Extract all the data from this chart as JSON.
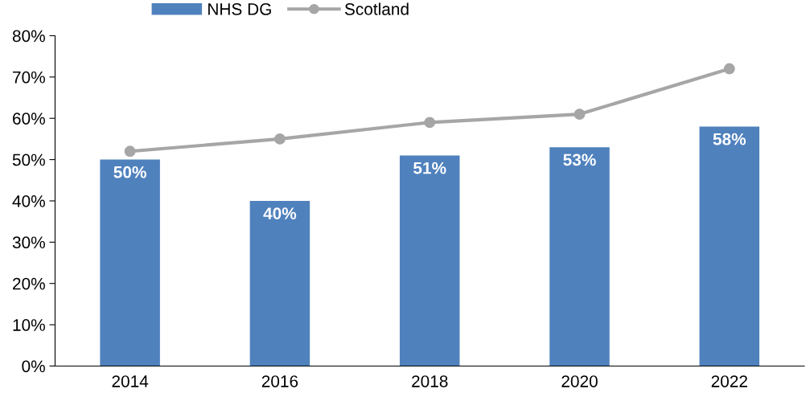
{
  "chart_data": {
    "type": "bar",
    "categories": [
      "2014",
      "2016",
      "2018",
      "2020",
      "2022"
    ],
    "series": [
      {
        "name": "NHS DG",
        "color": "#4f81bd",
        "values": [
          50,
          40,
          51,
          53,
          58
        ],
        "value_labels": [
          "50%",
          "40%",
          "51%",
          "53%",
          "58%"
        ]
      },
      {
        "name": "Scotland",
        "type": "line",
        "color": "#a6a6a6",
        "values": [
          52,
          55,
          59,
          61,
          72
        ],
        "marker": "circle",
        "line_style": "solid"
      }
    ],
    "ylim": [
      0,
      80
    ],
    "yticks": [
      {
        "value": 0,
        "label": "0%"
      },
      {
        "value": 10,
        "label": "10%"
      },
      {
        "value": 20,
        "label": "20%"
      },
      {
        "value": 30,
        "label": "30%"
      },
      {
        "value": 40,
        "label": "40%"
      },
      {
        "value": 50,
        "label": "50%"
      },
      {
        "value": 60,
        "label": "60%"
      },
      {
        "value": 70,
        "label": "70%"
      },
      {
        "value": 80,
        "label": "80%"
      }
    ],
    "legend": "top left"
  }
}
